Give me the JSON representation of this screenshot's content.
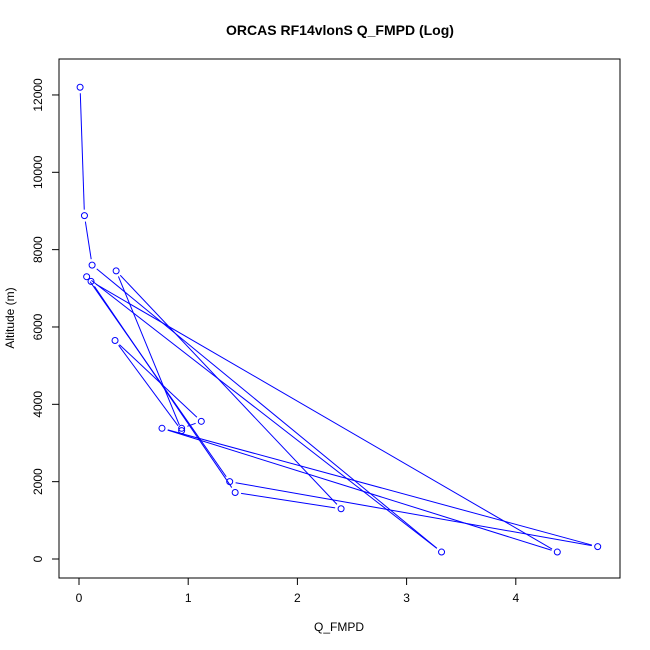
{
  "chart_data": {
    "type": "line",
    "title": "ORCAS RF14vlonS Q_FMPD (Log)",
    "xlabel": "Q_FMPD",
    "ylabel": "Altitude (m)",
    "xlim": [
      0,
      4.8
    ],
    "ylim": [
      0,
      12200
    ],
    "x_ticks": [
      0,
      1,
      2,
      3,
      4
    ],
    "y_ticks": [
      0,
      2000,
      4000,
      6000,
      8000,
      10000,
      12000
    ],
    "grid": false,
    "legend": "none",
    "series": [
      {
        "color": "#0000ff",
        "marker": "open-circle",
        "points": [
          {
            "x": 0.01,
            "y": 12200
          },
          {
            "x": 0.05,
            "y": 8880
          },
          {
            "x": 0.12,
            "y": 7600
          },
          {
            "x": 3.32,
            "y": 180
          },
          {
            "x": 0.07,
            "y": 7300
          },
          {
            "x": 1.38,
            "y": 2000
          },
          {
            "x": 4.75,
            "y": 320
          },
          {
            "x": 0.76,
            "y": 3380
          },
          {
            "x": 4.38,
            "y": 180
          },
          {
            "x": 0.11,
            "y": 7180
          },
          {
            "x": 1.43,
            "y": 1720
          },
          {
            "x": 2.4,
            "y": 1300
          },
          {
            "x": 0.34,
            "y": 7450
          },
          {
            "x": 0.94,
            "y": 3320
          },
          {
            "x": 0.33,
            "y": 5650
          },
          {
            "x": 1.12,
            "y": 3560
          },
          {
            "x": 0.94,
            "y": 3380
          }
        ]
      }
    ]
  }
}
